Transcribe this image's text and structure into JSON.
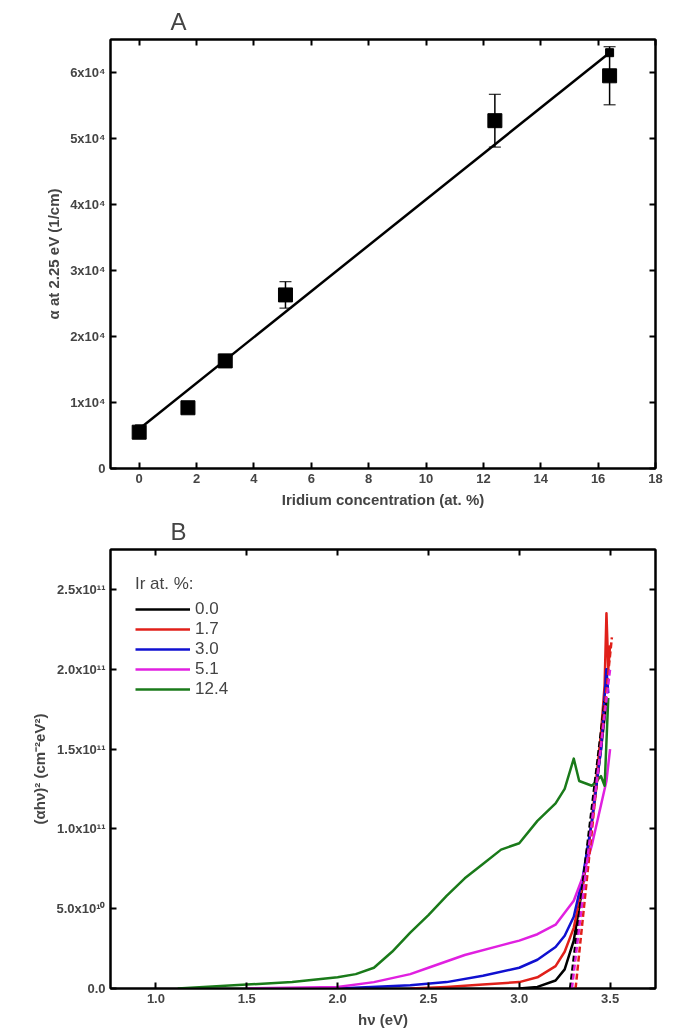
{
  "chart_data": [
    {
      "type": "scatter",
      "title": "A",
      "xlabel": "Iridium concentration (at. %)",
      "ylabel": "α at 2.25 eV (1/cm)",
      "xlim": [
        -1,
        18
      ],
      "ylim": [
        0,
        65000
      ],
      "xticks": [
        0,
        2,
        4,
        6,
        8,
        10,
        12,
        14,
        16,
        18
      ],
      "yticks": [
        0,
        {
          "value": 10000,
          "label": "1x10⁴"
        },
        {
          "value": 20000,
          "label": "2x10⁴"
        },
        {
          "value": 30000,
          "label": "3x10⁴"
        },
        {
          "value": 40000,
          "label": "4x10⁴"
        },
        {
          "value": 50000,
          "label": "5x10⁴"
        },
        {
          "value": 60000,
          "label": "6x10⁴"
        }
      ],
      "grid": false,
      "legend": false,
      "marker": "square",
      "series": [
        {
          "type": "scatter",
          "color": "#000000",
          "x": [
            0,
            1.7,
            3.0,
            5.1,
            12.4,
            16.4
          ],
          "values": [
            5500,
            9200,
            16300,
            26300,
            52700,
            59500
          ],
          "errors": [
            null,
            null,
            1000,
            2000,
            4000,
            4400
          ]
        },
        {
          "type": "line",
          "color": "#000000",
          "x": [
            0,
            16.4
          ],
          "values": [
            6000,
            63000
          ]
        }
      ]
    },
    {
      "type": "line",
      "title": "B",
      "xlabel": "hν (eV)",
      "ylabel": "(αhν)² (cm⁻²eV²)",
      "legend_title": "Ir at. %:",
      "xlim": [
        0.75,
        3.75
      ],
      "ylim": [
        0,
        275000000000
      ],
      "xticks": [
        {
          "value": 1.0,
          "label": "1.0"
        },
        1.5,
        {
          "value": 2.0,
          "label": "2.0"
        },
        2.5,
        {
          "value": 3.0,
          "label": "3.0"
        },
        3.5
      ],
      "yticks": [
        {
          "value": 0,
          "label": "0.0"
        },
        {
          "value": 50000000000,
          "label": "5.0x10¹⁰"
        },
        {
          "value": 100000000000,
          "label": "1.0x10¹¹"
        },
        {
          "value": 150000000000,
          "label": "1.5x10¹¹"
        },
        {
          "value": 200000000000,
          "label": "2.0x10¹¹"
        },
        {
          "value": 250000000000,
          "label": "2.5x10¹¹"
        }
      ],
      "grid": false,
      "legend": "top left",
      "marker": "none",
      "line_style": "solid",
      "series": [
        {
          "name": "0.0",
          "color": "#000000",
          "x": [
            3.0,
            3.1,
            3.2,
            3.25,
            3.3,
            3.35,
            3.4,
            3.45,
            3.48
          ],
          "values": [
            0,
            1000000000,
            5000000000,
            12000000000,
            30000000000,
            65000000000,
            105000000000,
            150000000000,
            180000000000
          ]
        },
        {
          "name": "1.7",
          "color": "#e0201a",
          "x": [
            2.4,
            2.6,
            2.8,
            3.0,
            3.1,
            3.2,
            3.25,
            3.3,
            3.35,
            3.4,
            3.45,
            3.47,
            3.48,
            3.49,
            3.5
          ],
          "values": [
            0,
            1000000000,
            2500000000,
            4000000000,
            7000000000,
            14000000000,
            23000000000,
            38000000000,
            65000000000,
            105000000000,
            160000000000,
            190000000000,
            235000000000,
            200000000000,
            215000000000
          ]
        },
        {
          "name": "3.0",
          "color": "#1010d0",
          "x": [
            2.0,
            2.4,
            2.6,
            2.8,
            3.0,
            3.1,
            3.2,
            3.25,
            3.3,
            3.35,
            3.4,
            3.45,
            3.48,
            3.49
          ],
          "values": [
            0,
            2000000000,
            4000000000,
            8000000000,
            13000000000,
            18000000000,
            26000000000,
            33000000000,
            45000000000,
            70000000000,
            105000000000,
            150000000000,
            200000000000,
            185000000000
          ]
        },
        {
          "name": "5.1",
          "color": "#e020e0",
          "x": [
            1.5,
            2.0,
            2.2,
            2.4,
            2.5,
            2.7,
            2.9,
            3.0,
            3.1,
            3.2,
            3.3,
            3.35,
            3.4,
            3.45,
            3.48,
            3.5
          ],
          "values": [
            0,
            1000000000,
            4000000000,
            9000000000,
            13000000000,
            21000000000,
            27000000000,
            30000000000,
            34000000000,
            40000000000,
            55000000000,
            70000000000,
            90000000000,
            115000000000,
            130000000000,
            150000000000
          ]
        },
        {
          "name": "12.4",
          "color": "#1a7a1a",
          "x": [
            1.12,
            1.5,
            1.75,
            2.0,
            2.1,
            2.2,
            2.3,
            2.4,
            2.5,
            2.6,
            2.7,
            2.8,
            2.9,
            3.0,
            3.1,
            3.2,
            3.25,
            3.3,
            3.33,
            3.4,
            3.45,
            3.47,
            3.49
          ],
          "values": [
            0,
            2500000000,
            4000000000,
            7000000000,
            9000000000,
            13000000000,
            23000000000,
            35000000000,
            46000000000,
            58000000000,
            69000000000,
            78000000000,
            87000000000,
            91000000000,
            105000000000,
            116000000000,
            125000000000,
            144000000000,
            130000000000,
            127000000000,
            133000000000,
            127000000000,
            182000000000
          ]
        },
        {
          "color": "#000000",
          "line_style": "dashed",
          "x": [
            3.28,
            3.47
          ],
          "values": [
            0,
            180000000000
          ]
        },
        {
          "color": "#e0201a",
          "line_style": "dashed",
          "x": [
            3.31,
            3.51
          ],
          "values": [
            0,
            220000000000
          ]
        },
        {
          "color": "#e020e0",
          "line_style": "dashed",
          "x": [
            3.29,
            3.5
          ],
          "values": [
            0,
            200000000000
          ]
        }
      ]
    }
  ]
}
